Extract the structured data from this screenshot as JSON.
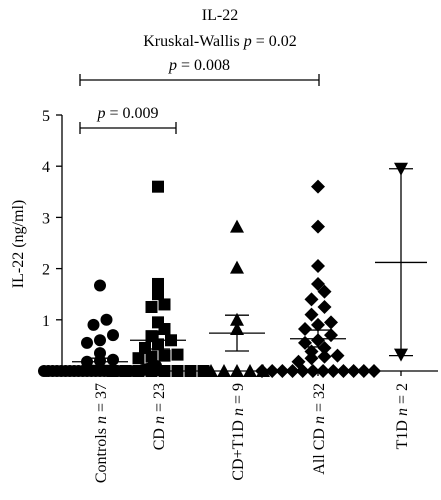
{
  "chart_data": {
    "type": "scatter",
    "title": "IL-22",
    "subtitle": "Kruskal-Wallis p = 0.02",
    "ylabel": "IL-22 (ng/ml)",
    "xlabel": "",
    "ylim": [
      0,
      5
    ],
    "yticks": [
      "0",
      "1",
      "2",
      "3",
      "4",
      "5"
    ],
    "grid": false,
    "categories": [
      {
        "name": "Controls",
        "n": "n = 37",
        "marker": "circle",
        "points": [
          1.67,
          1.0,
          0.9,
          0.7,
          0.6,
          0.55,
          0.35,
          0.22,
          0.2,
          0.18,
          0.1,
          0.07,
          0.04,
          0.02,
          0.0,
          0.0,
          0.0,
          0.0,
          0.0,
          0.0,
          0.0,
          0.0,
          0.0,
          0.0,
          0.0,
          0.0,
          0.0,
          0.0,
          0.0,
          0.0,
          0.0,
          0.0,
          0.0,
          0.0,
          0.0,
          0.0,
          0.0
        ],
        "mean": 0.18,
        "sem_low": 0.11,
        "sem_high": 0.25
      },
      {
        "name": "CD",
        "n": "n = 23",
        "marker": "square",
        "points": [
          3.6,
          1.7,
          1.5,
          1.3,
          1.25,
          0.95,
          0.82,
          0.68,
          0.6,
          0.52,
          0.45,
          0.32,
          0.3,
          0.28,
          0.25,
          0.0,
          0.0,
          0.0,
          0.0,
          0.0,
          0.0,
          0.0,
          0.0
        ],
        "mean": 0.6,
        "sem_low": 0.43,
        "sem_high": 0.78
      },
      {
        "name": "CD+T1D",
        "n": "n = 9",
        "marker": "triangle-up",
        "points": [
          2.82,
          2.02,
          1.0,
          0.82,
          0.0,
          0.0,
          0.0,
          0.0,
          0.0
        ],
        "mean": 0.74,
        "sem_low": 0.39,
        "sem_high": 1.09
      },
      {
        "name": "All CD",
        "n": "n = 32",
        "marker": "diamond",
        "points": [
          3.6,
          2.82,
          2.05,
          1.7,
          1.55,
          1.4,
          1.25,
          1.1,
          0.95,
          0.9,
          0.82,
          0.7,
          0.6,
          0.55,
          0.45,
          0.38,
          0.3,
          0.28,
          0.25,
          0.18,
          0.0,
          0.0,
          0.0,
          0.0,
          0.0,
          0.0,
          0.0,
          0.0,
          0.0,
          0.0,
          0.0,
          0.0
        ],
        "mean": 0.63,
        "sem_low": 0.47,
        "sem_high": 0.8
      },
      {
        "name": "T1D",
        "n": "n = 2",
        "marker": "triangle-down",
        "points": [
          3.95,
          0.32
        ],
        "mean": 2.12,
        "range_low": 0.3,
        "range_high": 3.95
      }
    ],
    "annotations": [
      {
        "text": "p = 0.009",
        "from": 0,
        "to": 1
      },
      {
        "text": "p = 0.008",
        "from": 0,
        "to": 3
      }
    ]
  }
}
